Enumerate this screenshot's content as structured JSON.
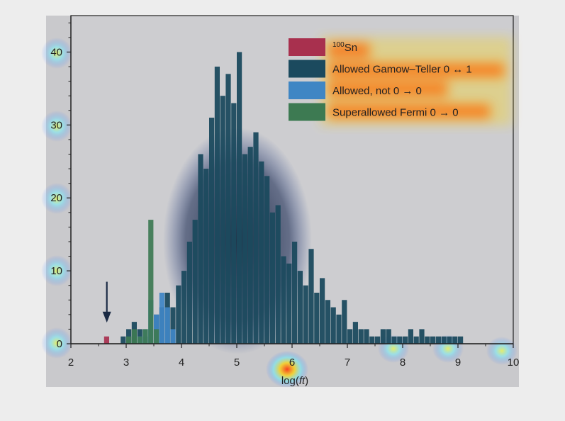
{
  "chart_data": {
    "type": "bar",
    "xlabel": "log(ft)",
    "ylabel": "",
    "xlim": [
      2,
      10
    ],
    "ylim": [
      0,
      45
    ],
    "x_ticks": [
      "2",
      "3",
      "4",
      "5",
      "6",
      "7",
      "8",
      "9",
      "10"
    ],
    "y_ticks": [
      "0",
      "10",
      "20",
      "30",
      "40"
    ],
    "bin_width": 0.1,
    "annotation": {
      "type": "arrow",
      "x": 2.65,
      "label": ""
    },
    "legend": {
      "position": "top-right",
      "entries": [
        {
          "label": "100Sn",
          "color": "#a8304e"
        },
        {
          "label": "Allowed Gamow–Teller 0 ↔ 1",
          "color": "#1b4a5e"
        },
        {
          "label": "Allowed, not 0 → 0",
          "color": "#3f86c4"
        },
        {
          "label": "Superallowed Fermi 0 → 0",
          "color": "#3d7a52"
        }
      ]
    },
    "series": [
      {
        "name": "Allowed Gamow–Teller 0 ↔ 1",
        "color": "#1b4a5e",
        "x": [
          2.9,
          3.0,
          3.1,
          3.2,
          3.3,
          3.4,
          3.5,
          3.6,
          3.7,
          3.8,
          3.9,
          4.0,
          4.1,
          4.2,
          4.3,
          4.4,
          4.5,
          4.6,
          4.7,
          4.8,
          4.9,
          5.0,
          5.1,
          5.2,
          5.3,
          5.4,
          5.5,
          5.6,
          5.7,
          5.8,
          5.9,
          6.0,
          6.1,
          6.2,
          6.3,
          6.4,
          6.5,
          6.6,
          6.7,
          6.8,
          6.9,
          7.0,
          7.1,
          7.2,
          7.3,
          7.4,
          7.5,
          7.6,
          7.7,
          7.8,
          7.9,
          8.0,
          8.1,
          8.2,
          8.3,
          8.4,
          8.5,
          8.6,
          8.7,
          8.8,
          8.9,
          9.0
        ],
        "values": [
          1,
          2,
          3,
          2,
          1,
          2,
          4,
          5,
          7,
          5,
          8,
          10,
          14,
          17,
          26,
          24,
          31,
          38,
          34,
          37,
          33,
          40,
          26,
          27,
          29,
          25,
          23,
          18,
          19,
          12,
          11,
          14,
          10,
          8,
          13,
          7,
          9,
          6,
          5,
          4,
          6,
          2,
          3,
          2,
          2,
          1,
          1,
          2,
          2,
          1,
          1,
          1,
          2,
          1,
          2,
          1,
          1,
          1,
          1,
          1,
          1,
          1
        ]
      },
      {
        "name": "Allowed, not 0 → 0",
        "color": "#3f86c4",
        "x": [
          3.2,
          3.3,
          3.4,
          3.5,
          3.6,
          3.7,
          3.8
        ],
        "values": [
          1,
          2,
          6,
          4,
          7,
          5,
          2
        ]
      },
      {
        "name": "Superallowed Fermi 0 → 0",
        "color": "#3d7a52",
        "x": [
          3.0,
          3.1,
          3.2,
          3.3,
          3.4,
          3.5
        ],
        "values": [
          1,
          2,
          1,
          2,
          17,
          2
        ]
      },
      {
        "name": "100Sn",
        "color": "#a8304e",
        "x": [
          2.6
        ],
        "values": [
          1
        ]
      }
    ]
  }
}
